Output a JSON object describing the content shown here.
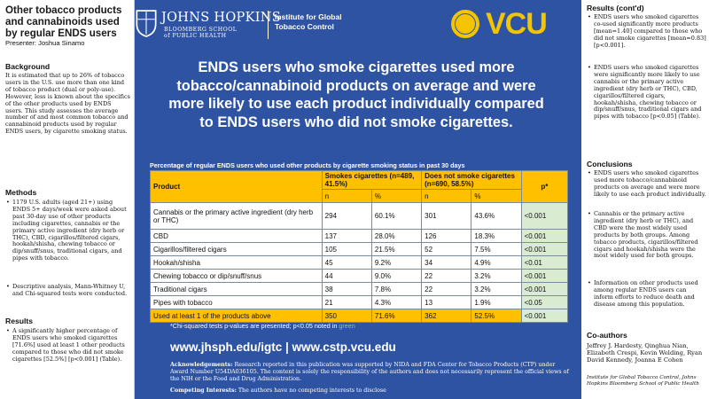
{
  "left": {
    "title": "Other tobacco products and cannabinoids used by regular ENDS users",
    "presenter": "Presenter: Joshua Sinamo",
    "background_heading": "Background",
    "background_text": "It is estimated that up to 26% of tobacco users in the U.S. use more than one kind of tobacco product (dual or poly-use). However, less is known about the specifics of the other products used by ENDS users. This study assesses the average number of and most common tobacco and cannabinoid products used by regular ENDS users, by cigarette smoking status.",
    "methods_heading": "Methods",
    "methods_items": [
      "1179 U.S. adults (aged 21+) using ENDS 5+ days/week were asked about past 30-day use of other products including cigarettes, cannabis or the primary active ingredient (dry herb or THC), CBD, cigarillos/filtered cigars, hookah/shisha, chewing tobacco or dip/snuff/snus, traditional cigars, and pipes with tobacco.",
      "Descriptive analysis, Mann-Whitney U, and Chi-squared tests were conducted."
    ],
    "results_heading": "Results",
    "results_items": [
      "A significantly higher percentage of ENDS users who smoked cigarettes [71.6%] used at least 1 other products compared to those who did not smoke cigarettes [52.5%] [p<0.001] (Table)."
    ]
  },
  "header": {
    "jhu_name": "JOHNS HOPKINS",
    "jhu_school_line1": "BLOOMBERG SCHOOL",
    "jhu_school_line2": "of PUBLIC HEALTH",
    "igtc_line1": "Institute for Global",
    "igtc_line2": "Tobacco Control",
    "vcu": "VCU"
  },
  "headline": "ENDS users who smoke cigarettes used more tobacco/cannabinoid products on average and were more likely to use each product individually compared to ENDS users who did not smoke cigarettes.",
  "table": {
    "caption": "Percentage of regular ENDS users who used other products by cigarette smoking status in past 30 days",
    "col_product": "Product",
    "col_smokes": "Smokes cigarettes (n=489, 41.5%)",
    "col_nosmoke": "Does not smoke cigarettes (n=690, 58.5%)",
    "col_p": "p*",
    "sub_n": "n",
    "sub_pct": "%",
    "rows": [
      {
        "product": "Cannabis or the primary active ingredient (dry herb or THC)",
        "n1": "294",
        "p1": "60.1%",
        "n2": "301",
        "p2": "43.6%",
        "p": "<0.001"
      },
      {
        "product": "CBD",
        "n1": "137",
        "p1": "28.0%",
        "n2": "126",
        "p2": "18.3%",
        "p": "<0.001"
      },
      {
        "product": "Cigarillos/filtered cigars",
        "n1": "105",
        "p1": "21.5%",
        "n2": "52",
        "p2": "7.5%",
        "p": "<0.001"
      },
      {
        "product": "Hookah/shisha",
        "n1": "45",
        "p1": "9.2%",
        "n2": "34",
        "p2": "4.9%",
        "p": "<0.01"
      },
      {
        "product": "Chewing tobacco or dip/snuff/snus",
        "n1": "44",
        "p1": "9.0%",
        "n2": "22",
        "p2": "3.2%",
        "p": "<0.001"
      },
      {
        "product": "Traditional cigars",
        "n1": "38",
        "p1": "7.8%",
        "n2": "22",
        "p2": "3.2%",
        "p": "<0.001"
      },
      {
        "product": "Pipes with tobacco",
        "n1": "21",
        "p1": "4.3%",
        "n2": "13",
        "p2": "1.9%",
        "p": "<0.05"
      }
    ],
    "total": {
      "product": "Used at least 1 of the products above",
      "n1": "350",
      "p1": "71.6%",
      "n2": "362",
      "p2": "52.5%",
      "p": "<0.001"
    }
  },
  "chi_note_prefix": "*Chi-squared tests p-values are presented; p<0.05 noted in ",
  "chi_note_green": "green",
  "urls": "www.jhsph.edu/igtc  |  www.cstp.vcu.edu",
  "ack_label": "Acknowledgements:",
  "ack_text": "Research reported in this publication was supported by NIDA and FDA Center for Tobacco Products (CTP) under Award Number U54DA036105. The content is solely the responsibility of the authors and does not necessarily represent the official views of the NIH or the Food and Drug Administration.",
  "competing_label": "Competing Interests:",
  "competing_text": "The authors have no competing interests to disclose",
  "right": {
    "results_cont_heading": "Results (cont'd)",
    "results_cont_items": [
      "ENDS users who smoked cigarettes co-used significantly more products [mean=1.40] compared to those who did not smoke cigarettes [mean=0.83] [p<0.001].",
      "ENDS users who smoked cigarettes were significantly more likely to use cannabis or the primary active ingredient (dry herb or THC), CBD, cigarillos/filtered cigars, hookah/shisha, chewing tobacco or dip/snuff/snus, traditional cigars and pipes with tobacco [p<0.05] (Table)."
    ],
    "conclusions_heading": "Conclusions",
    "conclusions_items": [
      "ENDS users who smoked cigarettes used more tobacco/cannabinoid products on average and were more likely to use each product individually.",
      "Cannabis or the primary active ingredient (dry herb or THC), and CBD were the most widely used products by both groups. Among tobacco products, cigarillos/filtered cigars and hookah/shisha were the most widely used for both groups.",
      "Information on other products used among regular ENDS users can inform efforts to reduce death and disease among this population."
    ],
    "coauthors_heading": "Co-authors",
    "coauthors_text": "Jeffrey J. Hardesty, Qinghua Nian, Elizabeth Crespi, Kevin Welding, Ryan David Kennedy, Joanna E Cohen",
    "affiliation": "Institute for Global Tobacco Control, Johns Hopkins Bloomberg School of Public Health"
  },
  "colors": {
    "panel_blue": "#2e53a3",
    "table_gold": "#ffc000",
    "p_green": "#d9ecd2",
    "vcu_gold": "#f5c400"
  }
}
